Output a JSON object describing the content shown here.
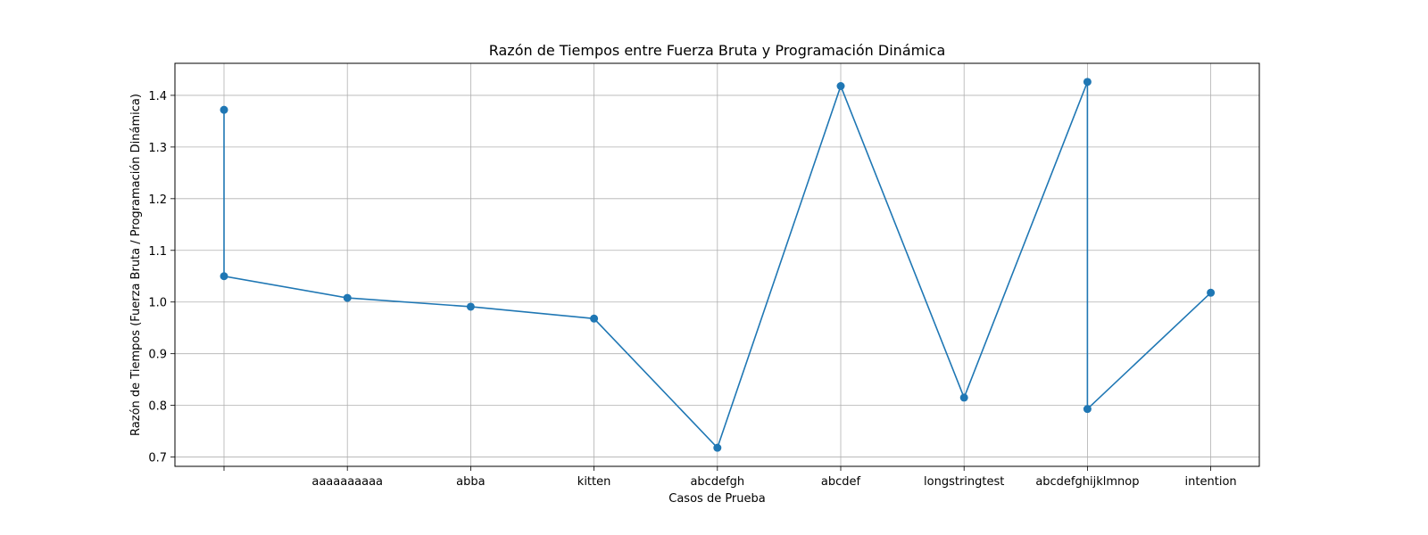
{
  "chart_data": {
    "type": "line",
    "title": "Razón de Tiempos entre Fuerza Bruta y Programación Dinámica",
    "xlabel": "Casos de Prueba",
    "ylabel": "Razón de Tiempos (Fuerza Bruta / Programación Dinámica)",
    "categories": [
      "",
      "aaaaaaaaaa",
      "abba",
      "kitten",
      "abcdefgh",
      "abcdef",
      "longstringtest",
      "abcdefghijklmnop",
      "intention"
    ],
    "points": [
      {
        "category": "",
        "value": 1.372
      },
      {
        "category": "",
        "value": 1.05
      },
      {
        "category": "aaaaaaaaaa",
        "value": 1.008
      },
      {
        "category": "abba",
        "value": 0.991
      },
      {
        "category": "kitten",
        "value": 0.968
      },
      {
        "category": "abcdefgh",
        "value": 0.718
      },
      {
        "category": "abcdef",
        "value": 1.418
      },
      {
        "category": "longstringtest",
        "value": 0.815
      },
      {
        "category": "abcdefghijklmnop",
        "value": 1.426
      },
      {
        "category": "abcdefghijklmnop",
        "value": 0.793
      },
      {
        "category": "intention",
        "value": 1.018
      }
    ],
    "yticks": [
      0.7,
      0.8,
      0.9,
      1.0,
      1.1,
      1.2,
      1.3,
      1.4
    ],
    "ytick_labels": [
      "0.7",
      "0.8",
      "0.9",
      "1.0",
      "1.1",
      "1.2",
      "1.3",
      "1.4"
    ],
    "ylim": [
      0.682,
      1.462
    ],
    "grid": true,
    "line_color": "#1f77b4",
    "marker": "circle"
  }
}
